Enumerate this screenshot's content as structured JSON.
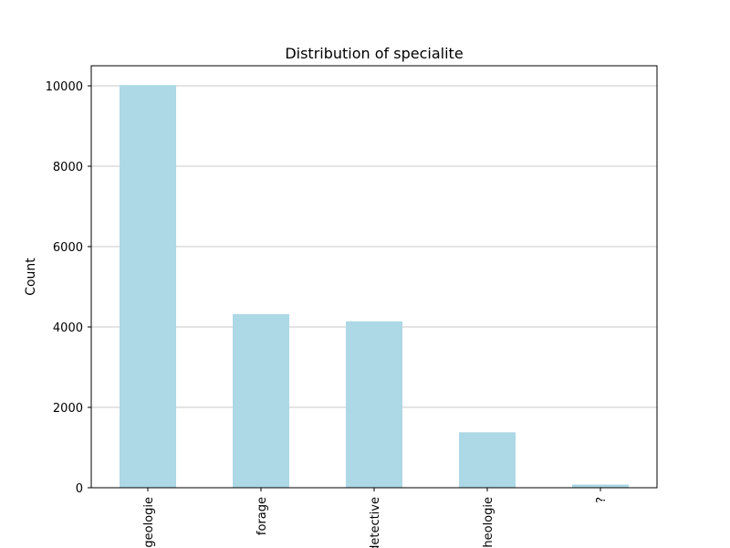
{
  "chart_data": {
    "type": "bar",
    "title": "Distribution of specialite",
    "xlabel": "",
    "ylabel": "Count",
    "categories": [
      "geologie",
      "forage",
      "detective",
      "archeologie",
      "?"
    ],
    "values": [
      10020,
      4320,
      4140,
      1380,
      80
    ],
    "ylim": [
      0,
      10500
    ],
    "yticks": [
      "0",
      "2000",
      "4000",
      "6000",
      "8000",
      "10000"
    ],
    "grid": "horizontal",
    "colors": {
      "bar": "#add8e6",
      "grid": "#c8c8c8"
    }
  }
}
